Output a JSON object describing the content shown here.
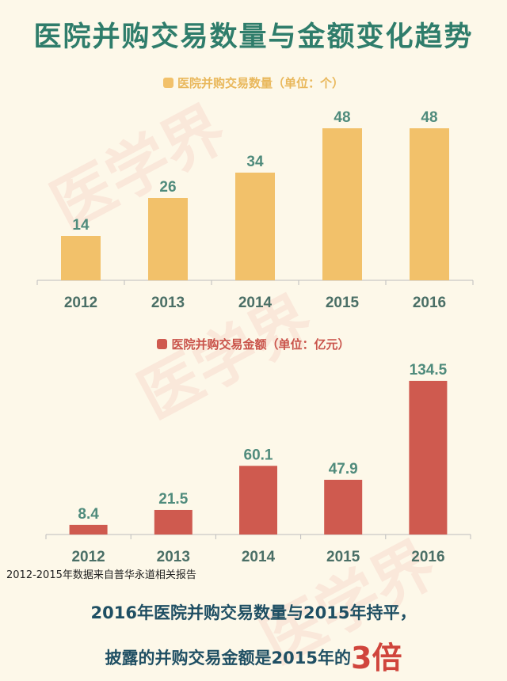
{
  "title": "医院并购交易数量与金额变化趋势",
  "watermark": "医学界",
  "chart_data": [
    {
      "type": "bar",
      "title": "医院并购交易数量（单位：个）",
      "categories": [
        "2012",
        "2013",
        "2014",
        "2015",
        "2016"
      ],
      "values": [
        14,
        26,
        34,
        48,
        48
      ],
      "ylim": [
        0,
        50
      ],
      "color": "#f2c16a",
      "value_color": "#4f8b7c",
      "legend_position": "top-center",
      "grid": false
    },
    {
      "type": "bar",
      "title": "医院并购交易金额（单位：亿元）",
      "categories": [
        "2012",
        "2013",
        "2014",
        "2015",
        "2016"
      ],
      "values": [
        8.4,
        21.5,
        60.1,
        47.9,
        134.5
      ],
      "value_labels": [
        "8.4",
        "21.5",
        "60.1",
        "47.9",
        "134.5"
      ],
      "ylim": [
        0,
        140
      ],
      "color": "#cf5a4f",
      "value_color": "#4f8b7c",
      "legend_position": "top-center",
      "grid": false
    }
  ],
  "source_note": "2012-2015年数据来自普华永道相关报告",
  "conclusion": {
    "line1": "2016年医院并购交易数量与2015年持平，",
    "line2_prefix": "披露的并购交易金额是2015年的",
    "line2_emphasis": "3倍"
  }
}
